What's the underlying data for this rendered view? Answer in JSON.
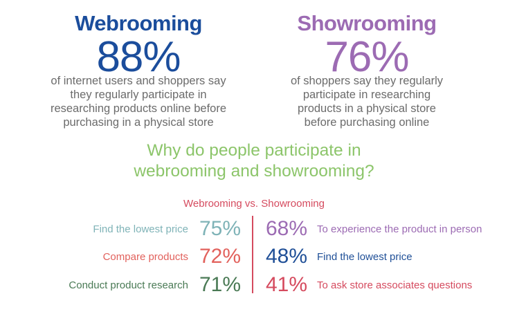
{
  "webrooming": {
    "title": "Webrooming",
    "percent": "88%",
    "desc_lines": [
      "of internet users and shoppers say",
      "they regularly participate in",
      "researching products online before",
      "purchasing in a physical store"
    ]
  },
  "showrooming": {
    "title": "Showrooming",
    "percent": "76%",
    "desc_lines": [
      "of shoppers say they regularly",
      "participate in researching",
      "products in a physical store",
      "before purchasing online"
    ]
  },
  "question_lines": [
    "Why do people participate in",
    "webrooming and showrooming?"
  ],
  "chart_data": {
    "type": "table",
    "title": "Webrooming vs. Showrooming",
    "webrooming_reasons": [
      {
        "label": "Find the lowest price",
        "percent": "75%",
        "value": 75,
        "color": "#7fb3b7"
      },
      {
        "label": "Compare products",
        "percent": "72%",
        "value": 72,
        "color": "#e2615c"
      },
      {
        "label": "Conduct product research",
        "percent": "71%",
        "value": 71,
        "color": "#4a7a55"
      }
    ],
    "showrooming_reasons": [
      {
        "label": "To experience the product in person",
        "percent": "68%",
        "value": 68,
        "color": "#9c6bb3"
      },
      {
        "label": "Find the lowest price",
        "percent": "48%",
        "value": 48,
        "color": "#1f4f97"
      },
      {
        "label": "To ask store associates questions",
        "percent": "41%",
        "value": 41,
        "color": "#d54a5e"
      }
    ]
  },
  "colors": {
    "webrooming": "#1b4d9c",
    "showrooming": "#9c6bb3",
    "question": "#8cc56a",
    "subtitle": "#d54a5e",
    "divider": "#d54a5e"
  }
}
